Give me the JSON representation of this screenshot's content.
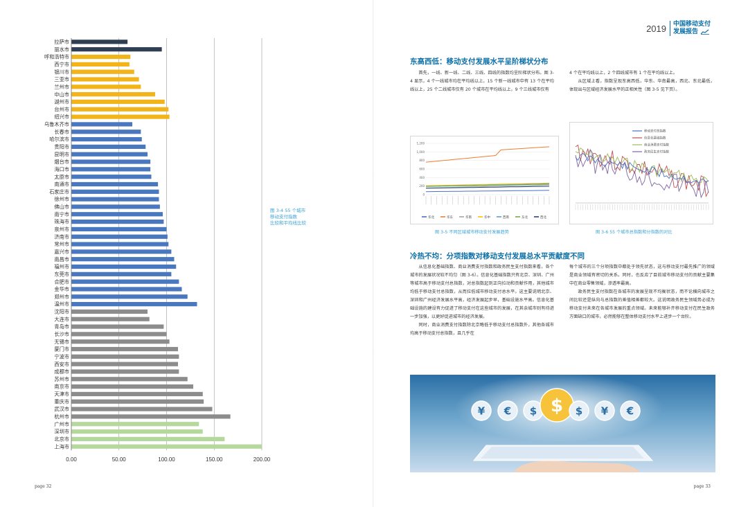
{
  "left_page": {
    "page_label": "page 32",
    "caption": [
      "图 3-4 55 个城市",
      "移动支付指数",
      "比较和平均线比较"
    ]
  },
  "chart_data": {
    "type": "bar",
    "orientation": "horizontal",
    "categories": [
      "拉萨市",
      "丽水市",
      "呼和浩特市",
      "西宁市",
      "银川市",
      "三亚市",
      "兰州市",
      "中山市",
      "湖州市",
      "台州市",
      "绍兴市",
      "乌鲁木齐市",
      "长春市",
      "哈尔滨市",
      "贵阳市",
      "昆明市",
      "烟台市",
      "海口市",
      "太原市",
      "南通市",
      "石家庄市",
      "徐州市",
      "佛山市",
      "南宁市",
      "珠海市",
      "泉州市",
      "济南市",
      "常州市",
      "嘉兴市",
      "南昌市",
      "福州市",
      "东莞市",
      "合肥市",
      "金华市",
      "郑州市",
      "温州市",
      "沈阳市",
      "大连市",
      "青岛市",
      "长沙市",
      "无锡市",
      "厦门市",
      "宁波市",
      "西安市",
      "成都市",
      "苏州市",
      "南京市",
      "天津市",
      "重庆市",
      "武汉市",
      "杭州市",
      "广州市",
      "深圳市",
      "北京市",
      "上海市"
    ],
    "values": [
      59,
      95,
      62,
      61,
      66,
      71,
      73,
      88,
      98,
      102,
      103,
      64,
      73,
      74,
      78,
      80,
      83,
      83,
      84,
      91,
      92,
      92,
      93,
      96,
      97,
      100,
      101,
      102,
      105,
      108,
      110,
      105,
      113,
      116,
      122,
      132,
      80,
      82,
      97,
      100,
      103,
      112,
      113,
      112,
      113,
      122,
      128,
      138,
      139,
      148,
      167,
      134,
      138,
      161,
      200
    ],
    "colors": [
      "#2f3e52",
      "#2f3e52",
      "#f2b418",
      "#f2b418",
      "#f2b418",
      "#f2b418",
      "#f2b418",
      "#f2b418",
      "#f2b418",
      "#f2b418",
      "#f2b418",
      "#4a78be",
      "#4a78be",
      "#4a78be",
      "#4a78be",
      "#4a78be",
      "#4a78be",
      "#4a78be",
      "#4a78be",
      "#4a78be",
      "#4a78be",
      "#4a78be",
      "#4a78be",
      "#4a78be",
      "#4a78be",
      "#4a78be",
      "#4a78be",
      "#4a78be",
      "#4a78be",
      "#4a78be",
      "#4a78be",
      "#4a78be",
      "#4a78be",
      "#4a78be",
      "#4a78be",
      "#4a78be",
      "#8c8c8c",
      "#8c8c8c",
      "#8c8c8c",
      "#8c8c8c",
      "#8c8c8c",
      "#8c8c8c",
      "#8c8c8c",
      "#8c8c8c",
      "#8c8c8c",
      "#8c8c8c",
      "#8c8c8c",
      "#8c8c8c",
      "#8c8c8c",
      "#8c8c8c",
      "#8c8c8c",
      "#b5d99c",
      "#b5d99c",
      "#b5d99c",
      "#b5d99c"
    ],
    "xlim": [
      0,
      200
    ],
    "xticks": [
      "0.00",
      "50.00",
      "100.00",
      "150.00",
      "200.00"
    ],
    "grid": true
  },
  "header": {
    "year": "2019",
    "title_line1": "中国移动支付",
    "title_line2": "发展报告"
  },
  "right_page": {
    "page_label": "page 33",
    "section1_title": "东高西低：移动支付发展水平呈阶梯状分布",
    "section1_col1": "首先，一线、新一线、二线、三线、四线的指数均呈阶梯状分布。图 3-4 显示，4 个一线城市均在平均线以上，15 个新一线城市中有 13 个在平均线以上，25 个二线城市仅有 20 个城市在平均线以上，9 个三线城市仅有",
    "section1_col2_p1": "4 个在平均线以上，2 个四线城市有 1 个在平均线以上。",
    "section1_col2_p2": "从区域上看，指数呈现东高西低，华东、华南最高，西北、东北最低，体现出与区域经济发展水平的正相关性（图 3-5 见下页）。",
    "fig35_caption": "图 3-5  不同区域城市移动支付发展趋势",
    "fig36_caption": "图 3-6  55 个城市总指数和分指数的对比",
    "section2_title": "冷热不均：分项指数对移动支付发展总水平贡献度不同",
    "section2_col1_p1": "从信息化基础指数、商业消费支付指数和政务民生支付指数来看，各个城市的发展状况较不均匀（图 3-6）。信息化基础指数只有北京、深圳、广州等城市高于移动支付总指数，对总指数起到正向拉动和贡献作用，其他城市均低于移动支付总指数，从而拉低城市移动支付总水平。这主要说明北京、深圳和广州经济发展水平高，经济发展起步早，基础设施水平高。信息化基础设施的建设有力促进了移动支付在这些城市的发展，在其余城市则有待进一步加强，以更好促进城市的经济发展。",
    "section2_col1_p2": "同时，商业消费支付指数除北京略低于移动支付总指数外，其他各城市均高于移动支付总指数，且几乎在",
    "section2_col2_p1": "每个城市的三个分项指数中都处于领先状态，这与移动支付最先推广的领域是商业领域有密切的关系。同时，也反应了目前城市移动支付的贡献主要集中在商业零售领域，渗透率最高。",
    "section2_col2_p2": "政务民生支付指数在各城市的发展呈现不均衡状态，而不论横向城市之间比较还是纵向与总指数的差值相差都较大。这说明政务民生领域势必成为移动支付未来在各城市发展的重点领域。未来能够补齐移动支付在民生政务方面缺口的城市，必然能够在整体移动支付水平上进步一个台阶。"
  },
  "fig35": {
    "yticks": [
      "1,200",
      "1,000",
      "800",
      "600",
      "400",
      "200",
      "0"
    ],
    "legend": [
      "华北",
      "华东",
      "华南",
      "华中",
      "西南",
      "东北",
      "西北"
    ],
    "colors": [
      "#4472c4",
      "#ed7d31",
      "#a5a5a5",
      "#ffc000",
      "#5b9bd5",
      "#70ad47",
      "#264478"
    ]
  },
  "fig36": {
    "legend": [
      "移动支付总指数",
      "信息化基础指数",
      "商业消费支付指数",
      "政务民生支付指数"
    ],
    "colors": [
      "#4472c4",
      "#c0504d",
      "#9bbb59",
      "#8064a2"
    ]
  },
  "photo": {
    "symbols": [
      "¥",
      "€",
      "$",
      "$",
      "$",
      "¥",
      "€"
    ]
  }
}
